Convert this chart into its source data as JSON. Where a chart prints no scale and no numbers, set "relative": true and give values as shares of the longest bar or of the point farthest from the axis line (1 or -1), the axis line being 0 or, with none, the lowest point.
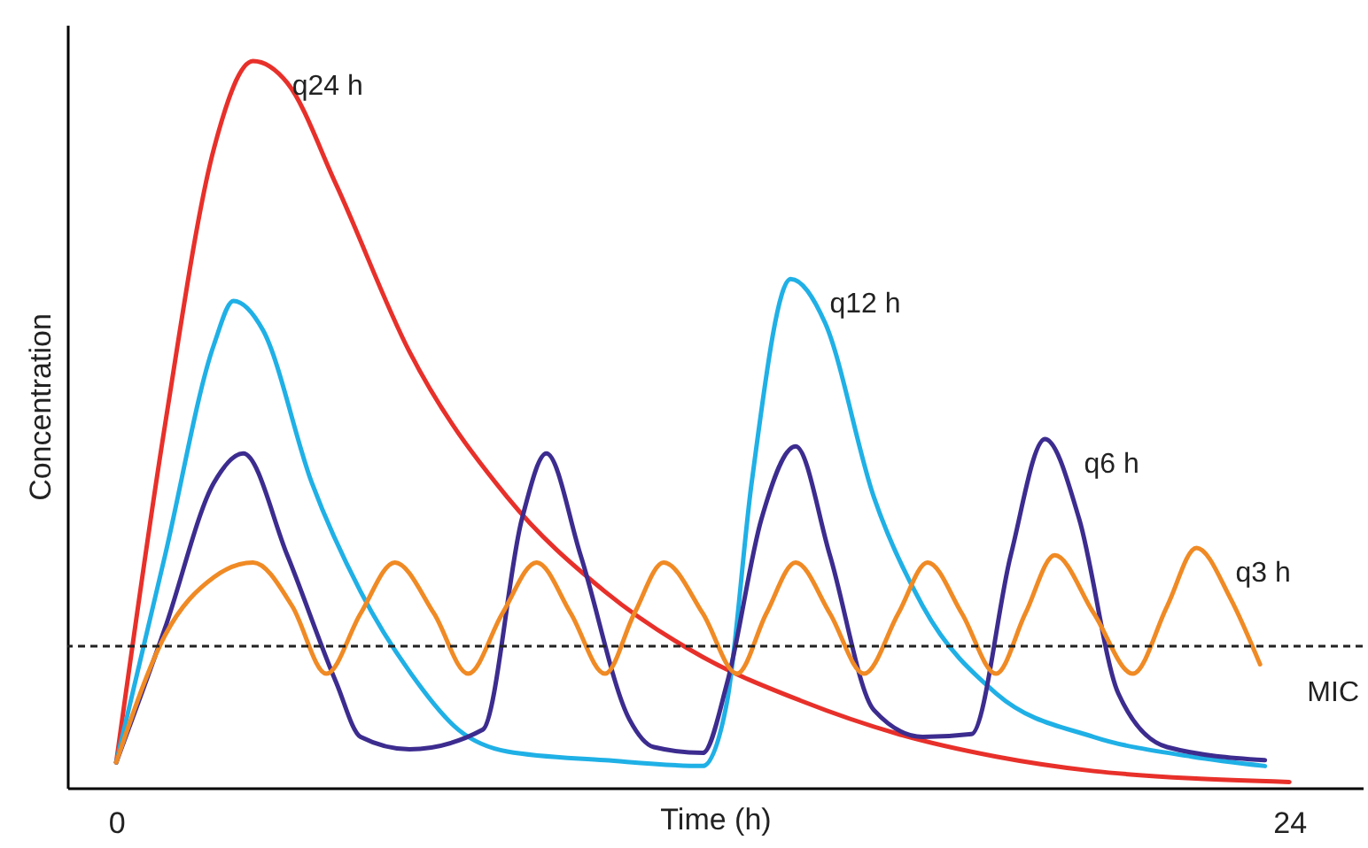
{
  "chart_data": {
    "type": "line",
    "relative": true,
    "xlabel": "Time (h)",
    "ylabel": "Concentration",
    "xlim": [
      -1,
      25.5
    ],
    "xticks": [
      0,
      24
    ],
    "grid": false,
    "legend": false,
    "line_style": "solid",
    "marker": "none",
    "series": [
      {
        "name": "q24 h",
        "color": "#e8302a",
        "x": [
          0,
          1,
          2,
          2.8,
          3.5,
          4.5,
          6,
          8,
          10,
          12,
          14,
          16,
          18,
          20,
          22,
          24
        ],
        "values": [
          0.035,
          0.5,
          0.88,
          1.0,
          0.97,
          0.83,
          0.6,
          0.4,
          0.27,
          0.18,
          0.12,
          0.074,
          0.043,
          0.023,
          0.013,
          0.008
        ]
      },
      {
        "name": "q12 h",
        "color": "#1fb0e6",
        "x": [
          0,
          1,
          2,
          2.4,
          3,
          4,
          5,
          6,
          7,
          8,
          10,
          12,
          12.5,
          13,
          13.8,
          14.5,
          15.5,
          16.5,
          18,
          20,
          22,
          23.5
        ],
        "values": [
          0.035,
          0.32,
          0.61,
          0.67,
          0.63,
          0.42,
          0.27,
          0.16,
          0.08,
          0.05,
          0.038,
          0.03,
          0.12,
          0.42,
          0.7,
          0.64,
          0.4,
          0.25,
          0.13,
          0.07,
          0.043,
          0.03
        ]
      },
      {
        "name": "q6 h",
        "color": "#3d2c8f",
        "x": [
          0,
          1,
          2,
          2.6,
          3.5,
          4.5,
          5,
          6,
          7.5,
          8.3,
          8.8,
          9.5,
          10.5,
          11,
          12,
          12.5,
          13.2,
          13.9,
          14.6,
          15.5,
          16.5,
          17.5,
          18.3,
          19,
          19.7,
          20.5,
          21.5,
          23.5
        ],
        "values": [
          0.035,
          0.22,
          0.42,
          0.46,
          0.32,
          0.145,
          0.07,
          0.053,
          0.08,
          0.37,
          0.46,
          0.32,
          0.094,
          0.056,
          0.048,
          0.145,
          0.37,
          0.47,
          0.32,
          0.107,
          0.07,
          0.074,
          0.32,
          0.48,
          0.37,
          0.13,
          0.056,
          0.038
        ]
      },
      {
        "name": "q3 h",
        "color": "#f08a24",
        "x": [
          0,
          1,
          2,
          2.8,
          3.6,
          4.3,
          5,
          5.7,
          6.5,
          7.2,
          7.9,
          8.6,
          9.3,
          10,
          10.6,
          11.2,
          12,
          12.7,
          13.3,
          13.9,
          14.6,
          15.3,
          16,
          16.6,
          17.3,
          18,
          18.6,
          19.2,
          20,
          20.8,
          21.5,
          22.1,
          22.8,
          23.4
        ],
        "values": [
          0.035,
          0.21,
          0.29,
          0.31,
          0.25,
          0.157,
          0.24,
          0.31,
          0.24,
          0.157,
          0.24,
          0.31,
          0.24,
          0.157,
          0.24,
          0.31,
          0.24,
          0.157,
          0.24,
          0.31,
          0.24,
          0.157,
          0.24,
          0.31,
          0.24,
          0.157,
          0.24,
          0.32,
          0.24,
          0.157,
          0.25,
          0.33,
          0.26,
          0.17
        ]
      }
    ],
    "ref_lines": [
      {
        "axis": "y",
        "value": 0.195,
        "label": "MIC",
        "color": "#222222",
        "line_style": "dashed"
      }
    ]
  }
}
